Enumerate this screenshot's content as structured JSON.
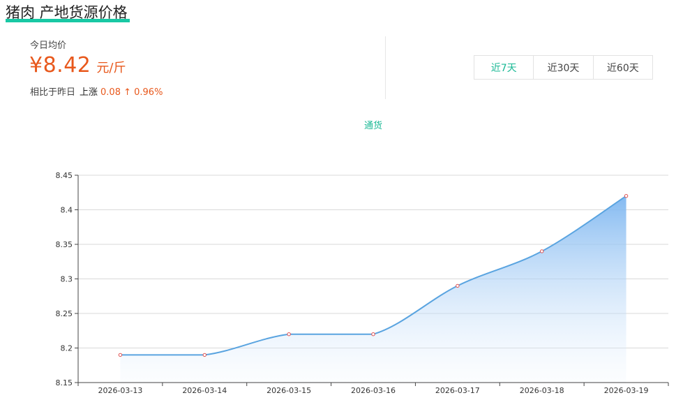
{
  "header": {
    "title": "猪肉 产地货源价格"
  },
  "summary": {
    "today_label": "今日均价",
    "price": "¥8.42",
    "unit": "元/斤",
    "compare_label": "相比于昨日",
    "direction": "上涨",
    "change": "0.08 ↑ 0.96%"
  },
  "range_tabs": [
    {
      "label": "近7天",
      "active": true
    },
    {
      "label": "近30天",
      "active": false
    },
    {
      "label": "近60天",
      "active": false
    }
  ],
  "colors": {
    "accent": "#18b894",
    "price": "#e8581c",
    "line": "#5aa4e0",
    "area_top": "#7db6f0",
    "point": "#e05050"
  },
  "chart_data": {
    "type": "area",
    "legend": [
      "通货"
    ],
    "categories": [
      "2026-03-13",
      "2026-03-14",
      "2026-03-15",
      "2026-03-16",
      "2026-03-17",
      "2026-03-18",
      "2026-03-19"
    ],
    "series": [
      {
        "name": "通货",
        "values": [
          8.19,
          8.19,
          8.22,
          8.22,
          8.29,
          8.34,
          8.42
        ]
      }
    ],
    "yticks": [
      "8.15",
      "8.2",
      "8.25",
      "8.3",
      "8.35",
      "8.4",
      "8.45"
    ],
    "ylim": [
      8.15,
      8.45
    ],
    "grid": true,
    "smooth": true
  }
}
